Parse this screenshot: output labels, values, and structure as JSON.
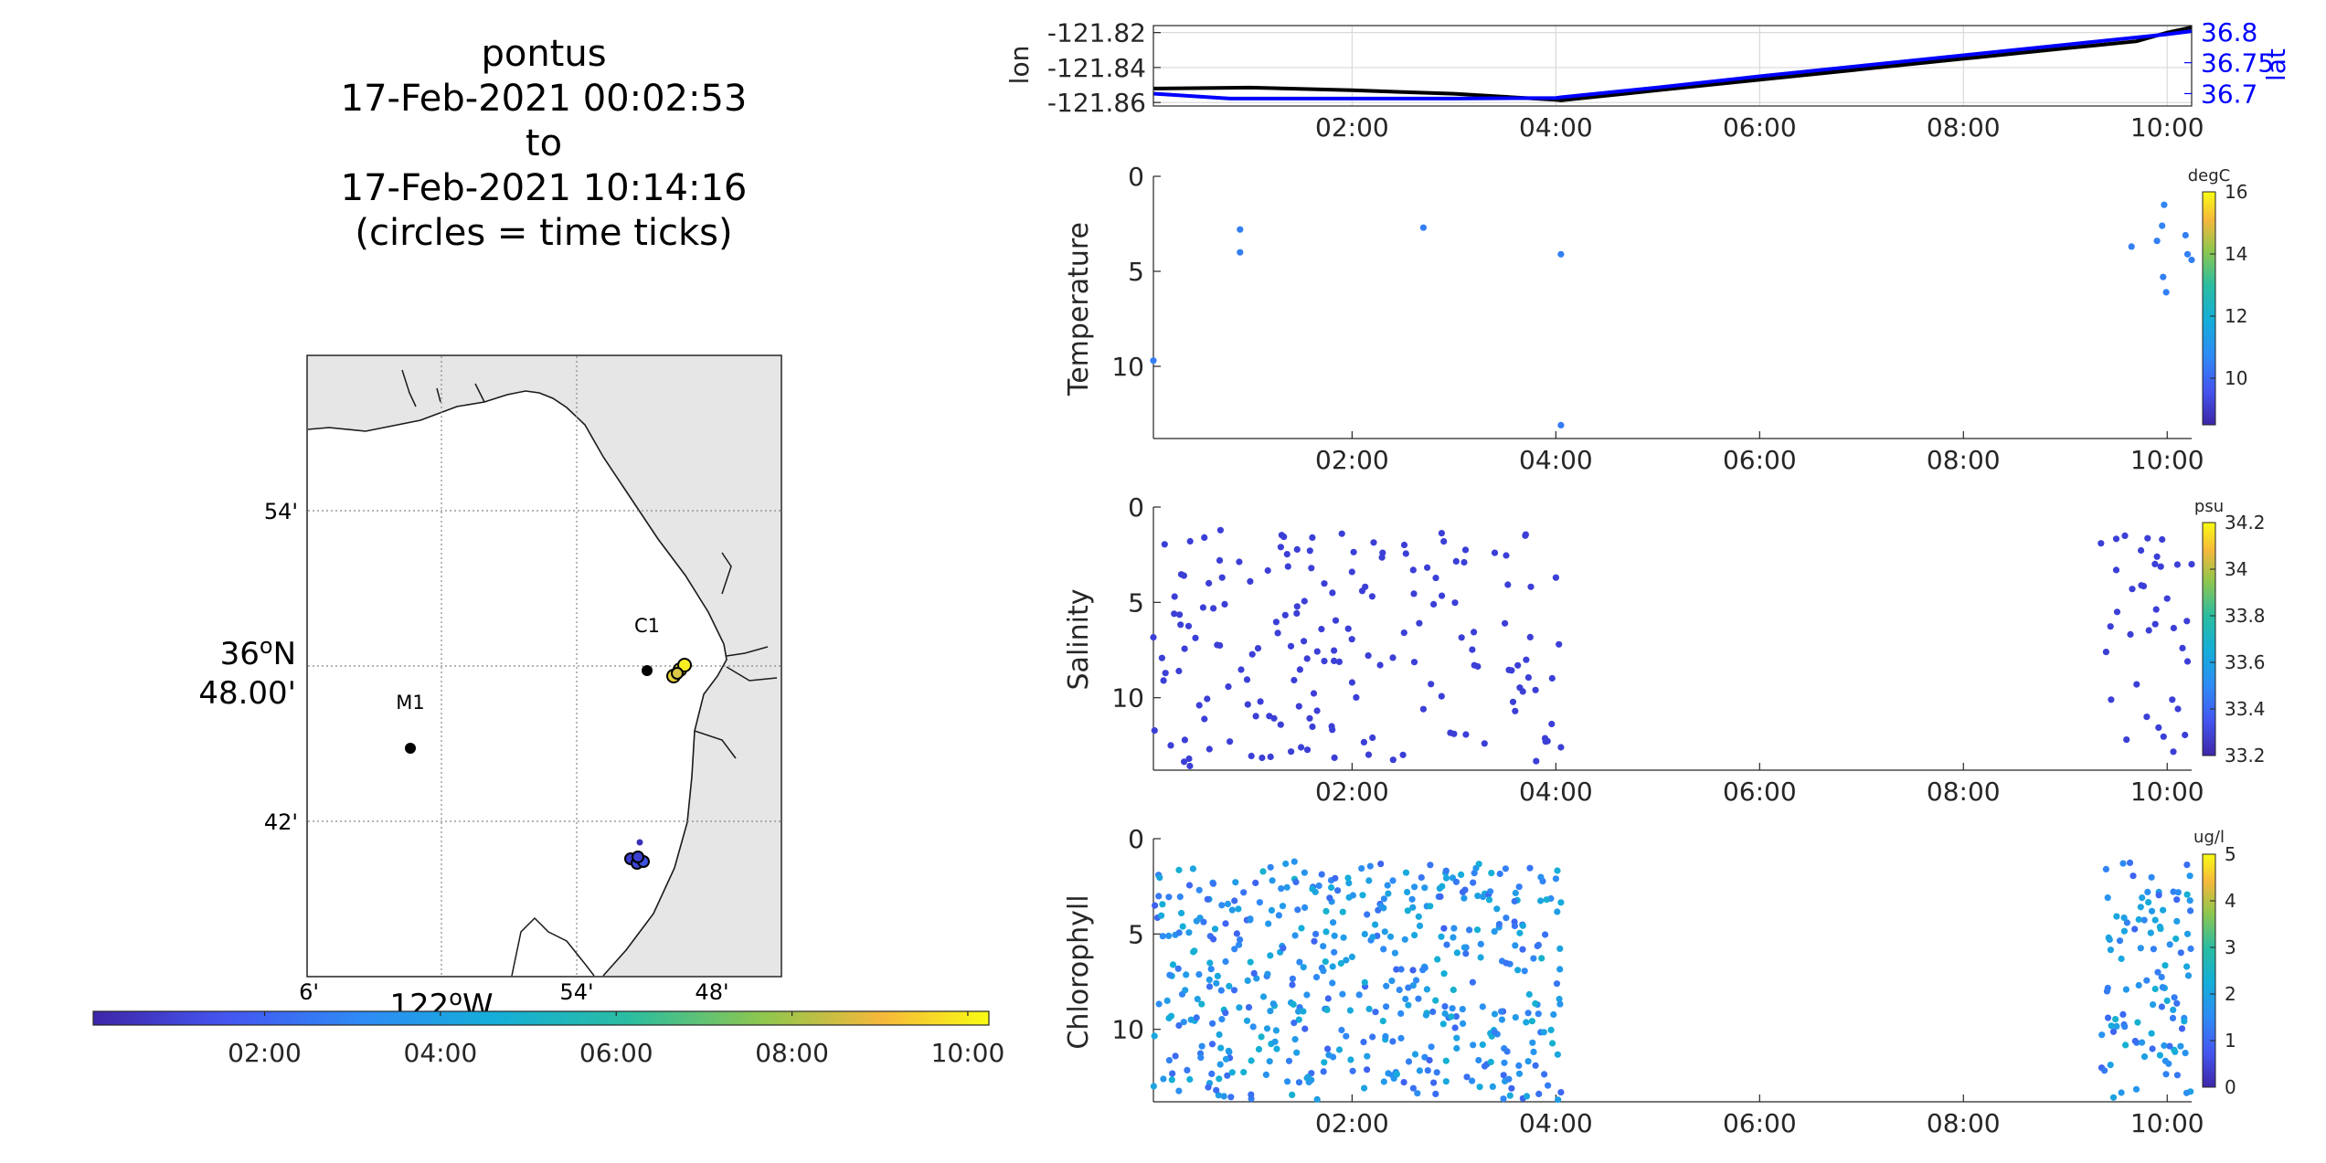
{
  "title": {
    "line1": "pontus",
    "line2": "17-Feb-2021 00:02:53",
    "line3": "to",
    "line4": "17-Feb-2021 10:14:16",
    "line5": "(circles = time ticks)"
  },
  "map": {
    "lat_labels": [
      "54'",
      "36°N 48.00'",
      "42'"
    ],
    "lon_labels": [
      "6'",
      "122°W",
      "54'",
      "48'"
    ],
    "stations": [
      {
        "name": "C1",
        "lon": -121.833,
        "lat": 36.797
      },
      {
        "name": "M1",
        "lon": -122.022,
        "lat": 36.748
      }
    ],
    "colors": {
      "land": "#e6e6e6",
      "coast": "#000000",
      "station": "#000000"
    }
  },
  "time_colorbar": {
    "ticks": [
      "02:00",
      "04:00",
      "06:00",
      "08:00",
      "10:00"
    ],
    "colormap": "parula"
  },
  "chart_data": [
    {
      "type": "line",
      "id": "lonlat",
      "x_unit": "hours since 00:00, 17-Feb-2021",
      "xlim": [
        0.05,
        10.24
      ],
      "xticks": [
        "02:00",
        "04:00",
        "06:00",
        "08:00",
        "10:00"
      ],
      "ylabel": "lon",
      "ylabel_right": "lat",
      "yticks_left": [
        "-121.82",
        "-121.84",
        "-121.86"
      ],
      "yticks_right": [
        "36.8",
        "36.75",
        "36.7"
      ],
      "ylim_left": [
        -121.862,
        -121.816
      ],
      "ylim_right": [
        36.68,
        36.81
      ],
      "series": [
        {
          "axis": "left",
          "color": "#000000",
          "x": [
            0.05,
            1.0,
            2.0,
            3.0,
            4.0,
            4.05,
            5.0,
            6.0,
            7.0,
            8.0,
            9.0,
            9.7,
            10.0,
            10.24
          ],
          "y": [
            -121.852,
            -121.8515,
            -121.853,
            -121.855,
            -121.8585,
            -121.8588,
            -121.853,
            -121.847,
            -121.841,
            -121.835,
            -121.829,
            -121.825,
            -121.82,
            -121.817
          ]
        },
        {
          "axis": "right",
          "color": "#0000ff",
          "x": [
            0.05,
            0.8,
            2.0,
            3.0,
            4.0,
            4.05,
            5.0,
            6.0,
            7.0,
            8.0,
            9.0,
            10.0,
            10.24
          ],
          "y": [
            36.7,
            36.692,
            36.692,
            36.692,
            36.693,
            36.694,
            36.71,
            36.728,
            36.745,
            36.762,
            36.779,
            36.796,
            36.801
          ]
        }
      ]
    },
    {
      "type": "scatter",
      "id": "temperature",
      "ylabel": "Temperature",
      "units": "degC",
      "xlim": [
        0.05,
        10.24
      ],
      "xticks": [
        "02:00",
        "04:00",
        "06:00",
        "08:00",
        "10:00"
      ],
      "ylim": [
        0,
        13.8
      ],
      "yticks": [
        "0",
        "5",
        "10"
      ],
      "clim": [
        8.5,
        16
      ],
      "cticks": [
        "16",
        "14",
        "12",
        "10"
      ],
      "points": [
        [
          0.05,
          9.7,
          10.5
        ],
        [
          0.9,
          2.8,
          10.5
        ],
        [
          0.9,
          4.0,
          10.5
        ],
        [
          2.7,
          2.7,
          10.5
        ],
        [
          4.05,
          4.1,
          10.5
        ],
        [
          4.05,
          13.1,
          10.4
        ],
        [
          9.65,
          3.7,
          10.5
        ],
        [
          9.9,
          3.4,
          10.5
        ],
        [
          9.95,
          2.6,
          10.6
        ],
        [
          9.97,
          1.5,
          10.6
        ],
        [
          9.96,
          5.3,
          10.5
        ],
        [
          9.99,
          6.1,
          10.5
        ],
        [
          10.18,
          3.1,
          10.5
        ],
        [
          10.2,
          4.1,
          10.5
        ],
        [
          10.24,
          4.4,
          10.5
        ]
      ]
    },
    {
      "type": "scatter",
      "id": "salinity",
      "ylabel": "Salinity",
      "units": "psu",
      "xlim": [
        0.05,
        10.24
      ],
      "xticks": [
        "02:00",
        "04:00",
        "06:00",
        "08:00",
        "10:00"
      ],
      "ylim": [
        0,
        13.8
      ],
      "yticks": [
        "0",
        "5",
        "10"
      ],
      "clim": [
        33.2,
        34.2
      ],
      "cticks": [
        "34.2",
        "34",
        "33.8",
        "33.6",
        "33.4",
        "33.2"
      ],
      "time_ranges": [
        [
          0.05,
          4.05
        ],
        [
          9.35,
          10.24
        ]
      ],
      "marker_color": "#3c3fd6",
      "points": [
        [
          0.15,
          9.1
        ],
        [
          0.22,
          12.5
        ],
        [
          0.3,
          8.6
        ],
        [
          0.35,
          3.6
        ],
        [
          0.4,
          13.2
        ],
        [
          0.5,
          10.4
        ],
        [
          0.55,
          1.6
        ],
        [
          0.6,
          12.7
        ],
        [
          0.7,
          2.8
        ],
        [
          0.75,
          5.1
        ],
        [
          0.8,
          12.3
        ],
        [
          1.0,
          3.9
        ],
        [
          1.1,
          10.2
        ],
        [
          1.2,
          13.1
        ],
        [
          1.3,
          2.1
        ],
        [
          1.4,
          7.3
        ],
        [
          1.5,
          12.6
        ],
        [
          1.6,
          3.2
        ],
        [
          1.7,
          6.4
        ],
        [
          1.8,
          11.5
        ],
        [
          1.9,
          1.4
        ],
        [
          2.0,
          9.2
        ],
        [
          2.1,
          4.4
        ],
        [
          2.2,
          12.1
        ],
        [
          2.3,
          2.4
        ],
        [
          2.4,
          7.9
        ],
        [
          2.5,
          13.0
        ],
        [
          2.6,
          3.3
        ],
        [
          2.7,
          10.6
        ],
        [
          2.8,
          5.1
        ],
        [
          2.9,
          1.8
        ],
        [
          3.0,
          11.9
        ],
        [
          3.1,
          2.9
        ],
        [
          3.2,
          8.3
        ],
        [
          3.3,
          12.4
        ],
        [
          3.4,
          2.4
        ],
        [
          3.5,
          6.1
        ],
        [
          3.6,
          10.7
        ],
        [
          3.7,
          1.5
        ],
        [
          3.8,
          9.6
        ],
        [
          3.9,
          12.3
        ],
        [
          4.0,
          3.7
        ],
        [
          4.03,
          7.2
        ],
        [
          4.05,
          12.6
        ],
        [
          9.35,
          1.9
        ],
        [
          9.4,
          7.6
        ],
        [
          9.45,
          10.1
        ],
        [
          9.5,
          3.3
        ],
        [
          9.6,
          12.2
        ],
        [
          9.7,
          9.3
        ],
        [
          9.8,
          11.0
        ],
        [
          9.9,
          2.6
        ],
        [
          9.95,
          1.7
        ],
        [
          10.0,
          4.8
        ],
        [
          10.05,
          10.1
        ],
        [
          10.15,
          7.4
        ],
        [
          10.2,
          8.1
        ],
        [
          10.24,
          3.0
        ]
      ]
    },
    {
      "type": "scatter",
      "id": "chlorophyll",
      "ylabel": "Chlorophyll",
      "units": "ug/l",
      "xlim": [
        0.05,
        10.24
      ],
      "xticks": [
        "02:00",
        "04:00",
        "06:00",
        "08:00",
        "10:00"
      ],
      "ylim": [
        0,
        13.8
      ],
      "yticks": [
        "0",
        "5",
        "10"
      ],
      "clim": [
        0,
        5
      ],
      "cticks": [
        "5",
        "4",
        "3",
        "2",
        "1",
        "0"
      ],
      "time_ranges": [
        [
          0.05,
          4.05
        ],
        [
          9.35,
          10.24
        ]
      ],
      "points": [
        [
          0.1,
          1.9,
          1.3
        ],
        [
          0.2,
          5.1,
          1.7
        ],
        [
          0.3,
          9.8,
          1.1
        ],
        [
          0.5,
          2.7,
          1.5
        ],
        [
          0.6,
          7.4,
          1.8
        ],
        [
          0.8,
          11.5,
          1.0
        ],
        [
          1.0,
          4.2,
          1.6
        ],
        [
          1.2,
          1.5,
          1.4
        ],
        [
          1.4,
          8.6,
          1.9
        ],
        [
          1.6,
          12.3,
          1.1
        ],
        [
          1.8,
          3.3,
          1.7
        ],
        [
          2.0,
          6.2,
          2.0
        ],
        [
          2.2,
          10.4,
          1.2
        ],
        [
          2.4,
          2.2,
          1.5
        ],
        [
          2.6,
          7.7,
          1.8
        ],
        [
          2.8,
          12.8,
          1.0
        ],
        [
          3.0,
          4.7,
          1.6
        ],
        [
          3.2,
          1.8,
          1.4
        ],
        [
          3.4,
          9.2,
          1.9
        ],
        [
          3.6,
          5.6,
          1.7
        ],
        [
          3.8,
          11.9,
          1.1
        ],
        [
          4.0,
          2.1,
          1.5
        ],
        [
          4.05,
          13.3,
          1.0
        ],
        [
          9.4,
          1.6,
          1.4
        ],
        [
          9.55,
          6.3,
          2.1
        ],
        [
          9.7,
          10.7,
          1.3
        ],
        [
          9.85,
          3.8,
          1.8
        ],
        [
          10.0,
          8.5,
          2.2
        ],
        [
          10.1,
          12.4,
          1.2
        ],
        [
          10.2,
          5.0,
          1.9
        ]
      ]
    }
  ]
}
